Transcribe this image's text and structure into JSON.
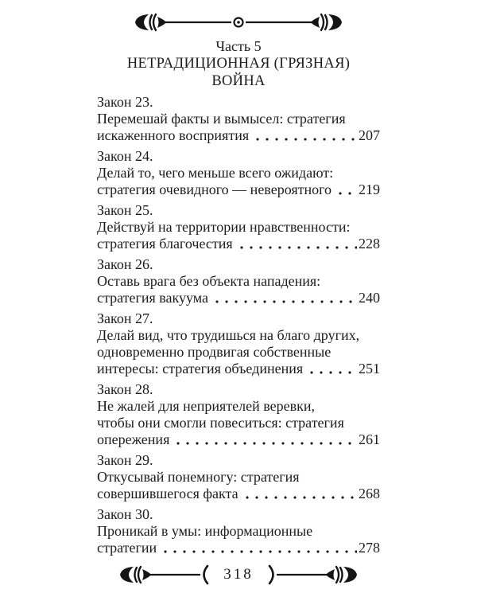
{
  "colors": {
    "ink": "#1c1c1c",
    "paper": "#ffffff"
  },
  "header": {
    "part_label": "Часть 5",
    "title_line1": "НЕТРАДИЦИОННАЯ (ГРЯЗНАЯ)",
    "title_line2": "ВОЙНА"
  },
  "toc": {
    "entries": [
      {
        "law": "Закон 23.",
        "lines": [
          "Перемешай факты и вымысел: стратегия"
        ],
        "last_line": "искаженного восприятия",
        "page": "207"
      },
      {
        "law": "Закон 24.",
        "lines": [
          "Делай то, чего меньше всего ожидают:"
        ],
        "last_line": "стратегия очевидного — невероятного",
        "page": "219"
      },
      {
        "law": "Закон 25.",
        "lines": [
          "Действуй на территории нравственности:"
        ],
        "last_line": "стратегия благочестия",
        "page": "228"
      },
      {
        "law": "Закон 26.",
        "lines": [
          "Оставь врага без объекта нападения:"
        ],
        "last_line": "стратегия вакуума",
        "page": "240"
      },
      {
        "law": "Закон 27.",
        "lines": [
          "Делай вид, что трудишься на благо других,",
          "одновременно продвигая собственные"
        ],
        "last_line": "интересы: стратегия объединения",
        "page": "251"
      },
      {
        "law": "Закон 28.",
        "lines": [
          "Не жалей для неприятелей веревки,",
          "чтобы они смогли повеситься: стратегия"
        ],
        "last_line": "опережения",
        "page": "261"
      },
      {
        "law": "Закон 29.",
        "lines": [
          "Откусывай понемногу: стратегия"
        ],
        "last_line": "совершившегося факта",
        "page": "268"
      },
      {
        "law": "Закон 30.",
        "lines": [
          "Проникай в умы: информационные"
        ],
        "last_line": "стратегии",
        "page": "278"
      }
    ]
  },
  "footer": {
    "page_number": "318"
  },
  "ornaments": {
    "top": "arrow-rule-divider-icon",
    "bottom": "arrow-rule-page-number-icon"
  }
}
